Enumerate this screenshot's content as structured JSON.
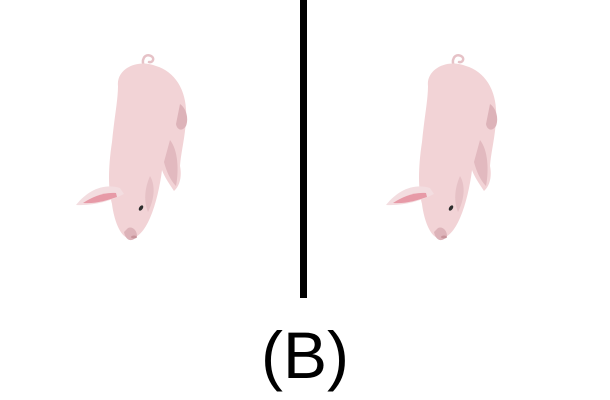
{
  "figure": {
    "label": "(B)",
    "panels": [
      {
        "name": "left-panel",
        "subject": "pig-icon"
      },
      {
        "name": "right-panel",
        "subject": "pig-icon"
      }
    ]
  },
  "colors": {
    "pig_body": "#f2d3d6",
    "pig_shadow": "#ddb3b9",
    "ear_inner": "#e79aa7",
    "divider": "#000000",
    "background": "#ffffff"
  }
}
